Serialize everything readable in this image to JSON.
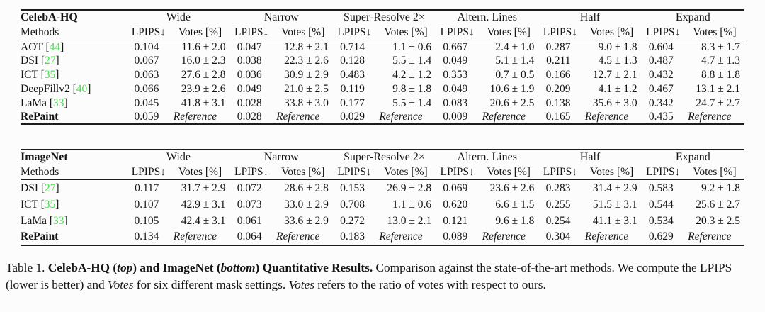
{
  "colors": {
    "citation_green": "#50d955",
    "text": "#151515",
    "rule": "#1d1d1d",
    "background": "#fcfcfc"
  },
  "tables": [
    {
      "dataset_label": "CelebA-HQ",
      "methods_header": "Methods",
      "groups": [
        "Wide",
        "Narrow",
        "Super-Resolve 2×",
        "Altern. Lines",
        "Half",
        "Expand"
      ],
      "sub_headers": [
        "LPIPS↓",
        "Votes [%]"
      ],
      "rows": [
        {
          "method": "AOT",
          "citation": "44",
          "bold": false,
          "cells": [
            "0.104",
            "11.6 ± 2.0",
            "0.047",
            "12.8 ± 2.1",
            "0.714",
            "1.1 ± 0.6",
            "0.667",
            "2.4 ± 1.0",
            "0.287",
            "9.0 ± 1.8",
            "0.604",
            "8.3 ± 1.7"
          ]
        },
        {
          "method": "DSI",
          "citation": "27",
          "bold": false,
          "cells": [
            "0.067",
            "16.0 ± 2.3",
            "0.038",
            "22.3 ± 2.6",
            "0.128",
            "5.5 ± 1.4",
            "0.049",
            "5.1 ± 1.4",
            "0.211",
            "4.5 ± 1.3",
            "0.487",
            "4.7 ± 1.3"
          ]
        },
        {
          "method": "ICT",
          "citation": "35",
          "bold": false,
          "cells": [
            "0.063",
            "27.6 ± 2.8",
            "0.036",
            "30.9 ± 2.9",
            "0.483",
            "4.2 ± 1.2",
            "0.353",
            "0.7 ± 0.5",
            "0.166",
            "12.7 ± 2.1",
            "0.432",
            "8.8 ± 1.8"
          ]
        },
        {
          "method": "DeepFillv2",
          "citation": "40",
          "bold": false,
          "cells": [
            "0.066",
            "23.9 ± 2.6",
            "0.049",
            "21.0 ± 2.5",
            "0.119",
            "9.8 ± 1.8",
            "0.049",
            "10.6 ± 1.9",
            "0.209",
            "4.1 ± 1.2",
            "0.467",
            "13.1 ± 2.1"
          ]
        },
        {
          "method": "LaMa",
          "citation": "33",
          "bold": false,
          "cells": [
            "0.045",
            "41.8 ± 3.1",
            "0.028",
            "33.8 ± 3.0",
            "0.177",
            "5.5 ± 1.4",
            "0.083",
            "20.6 ± 2.5",
            "0.138",
            "35.6 ± 3.0",
            "0.342",
            "24.7 ± 2.7"
          ]
        },
        {
          "method": "RePaint",
          "citation": null,
          "bold": true,
          "cells": [
            "0.059",
            "Reference",
            "0.028",
            "Reference",
            "0.029",
            "Reference",
            "0.009",
            "Reference",
            "0.165",
            "Reference",
            "0.435",
            "Reference"
          ]
        }
      ]
    },
    {
      "dataset_label": "ImageNet",
      "methods_header": "Methods",
      "groups": [
        "Wide",
        "Narrow",
        "Super-Resolve 2×",
        "Altern. Lines",
        "Half",
        "Expand"
      ],
      "sub_headers": [
        "LPIPS↓",
        "Votes [%]"
      ],
      "rows": [
        {
          "method": "DSI",
          "citation": "27",
          "bold": false,
          "cells": [
            "0.117",
            "31.7 ± 2.9",
            "0.072",
            "28.6 ± 2.8",
            "0.153",
            "26.9 ± 2.8",
            "0.069",
            "23.6 ± 2.6",
            "0.283",
            "31.4 ± 2.9",
            "0.583",
            "9.2 ± 1.8"
          ]
        },
        {
          "method": "ICT",
          "citation": "35",
          "bold": false,
          "cells": [
            "0.107",
            "42.9 ± 3.1",
            "0.073",
            "33.0 ± 2.9",
            "0.708",
            "1.1 ± 0.6",
            "0.620",
            "6.6 ± 1.5",
            "0.255",
            "51.5 ± 3.1",
            "0.544",
            "25.6 ± 2.7"
          ]
        },
        {
          "method": "LaMa",
          "citation": "33",
          "bold": false,
          "cells": [
            "0.105",
            "42.4 ± 3.1",
            "0.061",
            "33.6 ± 2.9",
            "0.272",
            "13.0 ± 2.1",
            "0.121",
            "9.6 ± 1.8",
            "0.254",
            "41.1 ± 3.1",
            "0.534",
            "20.3 ± 2.5"
          ]
        },
        {
          "method": "RePaint",
          "citation": null,
          "bold": true,
          "cells": [
            "0.134",
            "Reference",
            "0.064",
            "Reference",
            "0.183",
            "Reference",
            "0.089",
            "Reference",
            "0.304",
            "Reference",
            "0.629",
            "Reference"
          ]
        }
      ]
    }
  ],
  "caption": {
    "prefix": "Table 1. ",
    "bold_1": "CelebA-HQ (",
    "bold_italic_1": "top",
    "bold_2": ") and ImageNet (",
    "bold_italic_2": "bottom",
    "bold_3": ") Quantitative Results.",
    "text_1": " Comparison against the state-of-the-art methods. We compute the LPIPS (lower is better) and ",
    "italic_1": "Votes",
    "text_2": " for six different mask settings. ",
    "italic_2": "Votes",
    "text_3": " refers to the ratio of votes with respect to ours."
  }
}
